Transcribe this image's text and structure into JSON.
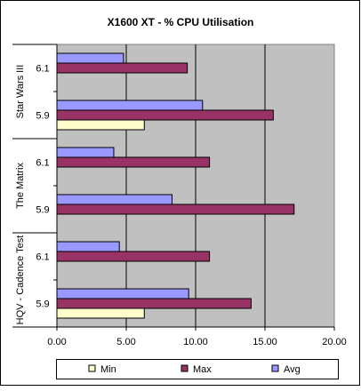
{
  "chart_data": {
    "type": "bar",
    "orientation": "horizontal",
    "title": "X1600 XT - % CPU Utilisation",
    "groups": [
      {
        "label": "Star Wars III",
        "categories": [
          "6.1",
          "5.9"
        ]
      },
      {
        "label": "The Matrix",
        "categories": [
          "6.1",
          "5.9"
        ]
      },
      {
        "label": "HQV - Cadence Test",
        "categories": [
          "6.1",
          "5.9"
        ]
      }
    ],
    "series": [
      {
        "name": "Min",
        "color": "#FFFFCC",
        "values": [
          null,
          6.3,
          null,
          null,
          null,
          6.3
        ]
      },
      {
        "name": "Max",
        "color": "#993366",
        "values": [
          9.4,
          15.6,
          11.0,
          17.1,
          11.0,
          14.0
        ]
      },
      {
        "name": "Avg",
        "color": "#9999FF",
        "values": [
          4.8,
          10.5,
          4.1,
          8.3,
          4.5,
          9.5
        ]
      }
    ],
    "xlim": [
      0,
      20
    ],
    "xticks": [
      "0.00",
      "5.00",
      "10.00",
      "15.00",
      "20.00"
    ],
    "grid": true,
    "plot_background": "#C0C0C0",
    "legend_position": "bottom"
  }
}
